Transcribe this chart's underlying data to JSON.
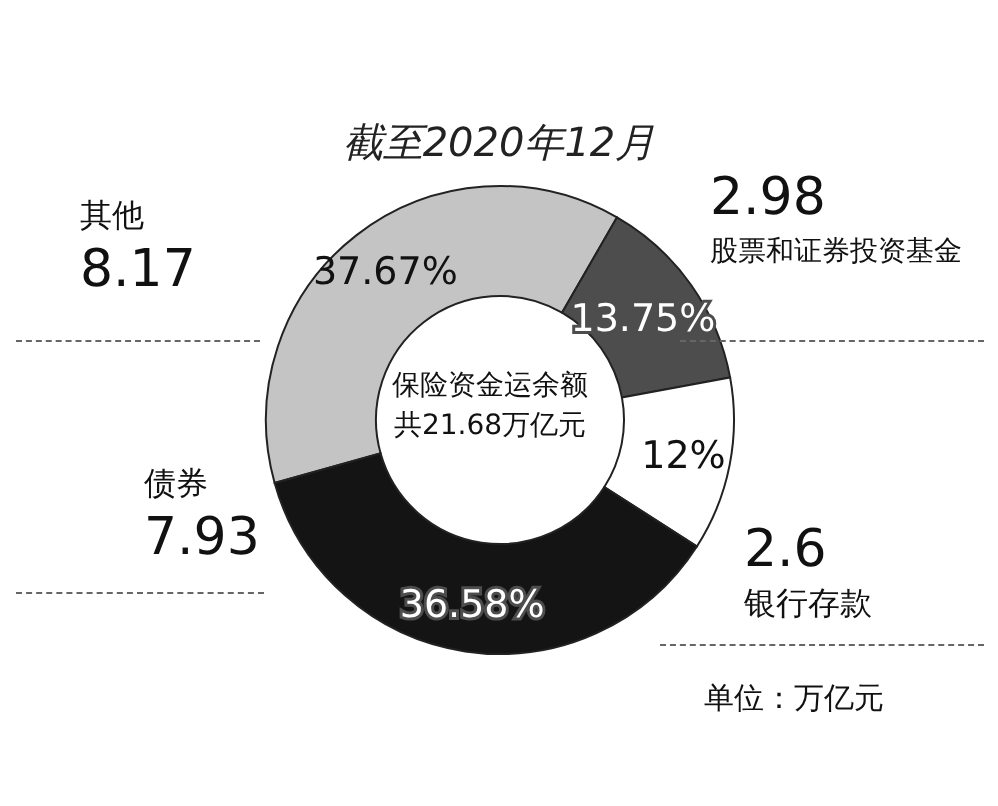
{
  "chart_data": {
    "type": "donut",
    "title": "截至2020年12月",
    "categories": [
      "其他",
      "股票和证券投资基金",
      "银行存款",
      "债券"
    ],
    "values": [
      37.67,
      13.75,
      12,
      36.58
    ],
    "colors": [
      "#c4c4c4",
      "#4d4d4d",
      "#ffffff",
      "#141414"
    ],
    "value_labels": [
      "37.67%",
      "13.75%",
      "12%",
      "36.58%"
    ],
    "annotations": [
      "保险资金运余额共21.68万亿元",
      "单位：万亿元",
      {
        "text": "8.17",
        "x": "其他"
      },
      {
        "text": "2.98",
        "x": "股票和证券投资基金"
      },
      {
        "text": "2.6",
        "x": "银行存款"
      },
      {
        "text": "7.93",
        "x": "债券"
      }
    ],
    "legend": false
  }
}
